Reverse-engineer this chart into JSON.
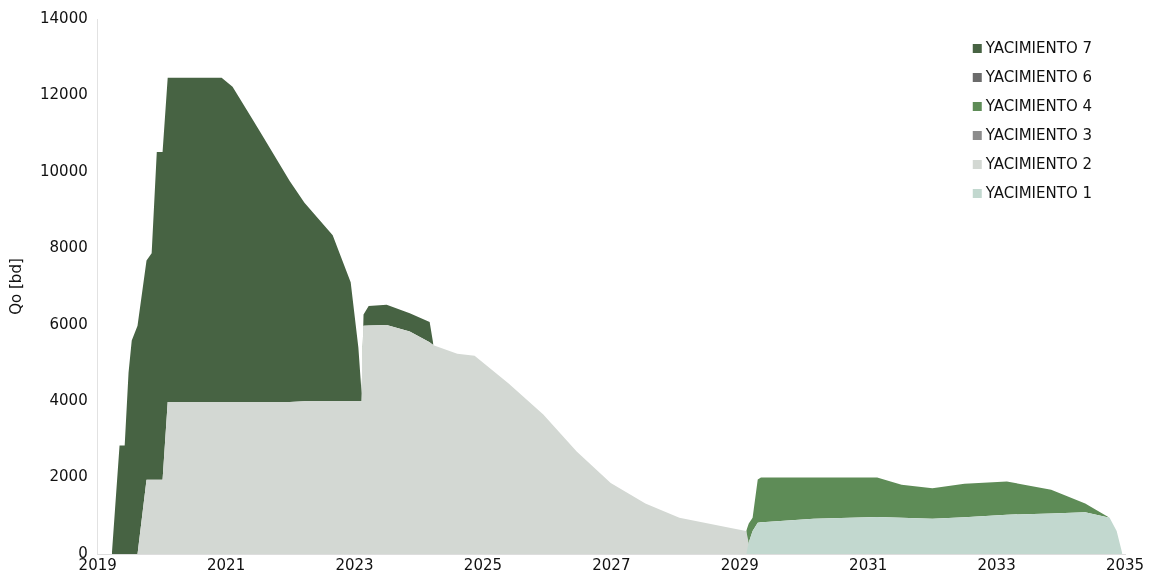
{
  "chart_data": {
    "type": "area",
    "stacked": true,
    "ylabel": "Qo [bd]",
    "legend": "top right",
    "grid": false,
    "xlim": [
      2019,
      2035
    ],
    "xticks": [
      2019,
      2021,
      2023,
      2025,
      2027,
      2029,
      2031,
      2033,
      2035
    ],
    "ylim": [
      0,
      14000
    ],
    "yticks": [
      0,
      2000,
      4000,
      6000,
      8000,
      10000,
      12000,
      14000
    ],
    "x": [
      2019.22,
      2019.34,
      2019.42,
      2019.48,
      2019.53,
      2019.62,
      2019.76,
      2019.84,
      2019.92,
      2020.01,
      2020.09,
      2020.93,
      2021.1,
      2021.55,
      2021.99,
      2022.22,
      2022.66,
      2022.94,
      2023.06,
      2023.11,
      2023.14,
      2023.22,
      2023.5,
      2023.86,
      2024.17,
      2024.23,
      2024.6,
      2024.87,
      2025.4,
      2025.94,
      2026.46,
      2026.99,
      2027.53,
      2028.06,
      2028.86,
      2029.1,
      2029.14,
      2029.2,
      2029.28,
      2029.33,
      2030.15,
      2031.14,
      2031.52,
      2032.0,
      2032.5,
      2033.16,
      2033.85,
      2034.38,
      2034.76,
      2034.87,
      2034.96
    ],
    "series": [
      {
        "name": "YACIMIENTO 1",
        "color": "#c2d8cf",
        "values": [
          null,
          null,
          null,
          null,
          null,
          null,
          null,
          null,
          null,
          null,
          null,
          null,
          null,
          null,
          null,
          null,
          null,
          null,
          null,
          null,
          null,
          null,
          null,
          null,
          null,
          null,
          null,
          null,
          null,
          null,
          null,
          null,
          null,
          null,
          null,
          0,
          300,
          600,
          820,
          830,
          920,
          970,
          950,
          920,
          960,
          1030,
          1060,
          1090,
          950,
          600,
          0
        ]
      },
      {
        "name": "YACIMIENTO 2",
        "color": "#d3d8d3",
        "values": [
          0,
          0,
          0,
          0,
          0,
          0,
          1940,
          1940,
          1940,
          1940,
          3980,
          3980,
          3980,
          3980,
          3980,
          4000,
          4000,
          4000,
          4000,
          4000,
          5970,
          5980,
          5990,
          5820,
          5540,
          5460,
          5240,
          5190,
          4460,
          3650,
          2680,
          1860,
          1320,
          950,
          680,
          600,
          0,
          null,
          null,
          null,
          null,
          null,
          null,
          null,
          null,
          null,
          null,
          null,
          null,
          null,
          null
        ]
      },
      {
        "name": "YACIMIENTO 3",
        "color": "#8c8c8c",
        "values": [
          null,
          null,
          null,
          null,
          null,
          null,
          null,
          null,
          null,
          null,
          null,
          null,
          null,
          null,
          null,
          null,
          null,
          null,
          null,
          null,
          null,
          null,
          null,
          null,
          null,
          null,
          null,
          null,
          null,
          null,
          null,
          null,
          null,
          null,
          null,
          null,
          null,
          null,
          null,
          null,
          null,
          null,
          null,
          null,
          null,
          null,
          null,
          null,
          null,
          null,
          null
        ]
      },
      {
        "name": "YACIMIENTO 4",
        "color": "#5e8c57",
        "values": [
          null,
          null,
          null,
          null,
          null,
          null,
          null,
          null,
          null,
          null,
          null,
          null,
          null,
          null,
          null,
          null,
          null,
          null,
          null,
          null,
          null,
          null,
          null,
          null,
          null,
          null,
          null,
          null,
          null,
          null,
          null,
          null,
          null,
          null,
          null,
          0,
          500,
          350,
          1130,
          1170,
          1080,
          1030,
          860,
          800,
          880,
          870,
          620,
          230,
          0,
          null,
          null
        ]
      },
      {
        "name": "YACIMIENTO 6",
        "color": "#6b6b6b",
        "values": [
          null,
          null,
          null,
          null,
          null,
          null,
          null,
          null,
          null,
          null,
          null,
          null,
          null,
          null,
          null,
          null,
          null,
          null,
          null,
          null,
          null,
          null,
          null,
          null,
          null,
          null,
          null,
          null,
          null,
          null,
          null,
          null,
          null,
          null,
          null,
          null,
          null,
          null,
          null,
          null,
          null,
          null,
          null,
          null,
          null,
          null,
          null,
          null,
          null,
          null,
          null
        ]
      },
      {
        "name": "YACIMIENTO 7",
        "color": "#476343",
        "values": [
          0,
          2840,
          2840,
          4740,
          5590,
          5970,
          5740,
          5930,
          8580,
          8580,
          8480,
          8480,
          8250,
          7010,
          5780,
          5190,
          4340,
          3110,
          1400,
          200,
          300,
          510,
          530,
          480,
          530,
          0,
          null,
          null,
          null,
          null,
          null,
          null,
          null,
          null,
          null,
          null,
          null,
          null,
          null,
          null,
          null,
          null,
          null,
          null,
          null,
          null,
          null,
          null,
          null,
          null,
          null
        ]
      }
    ]
  }
}
